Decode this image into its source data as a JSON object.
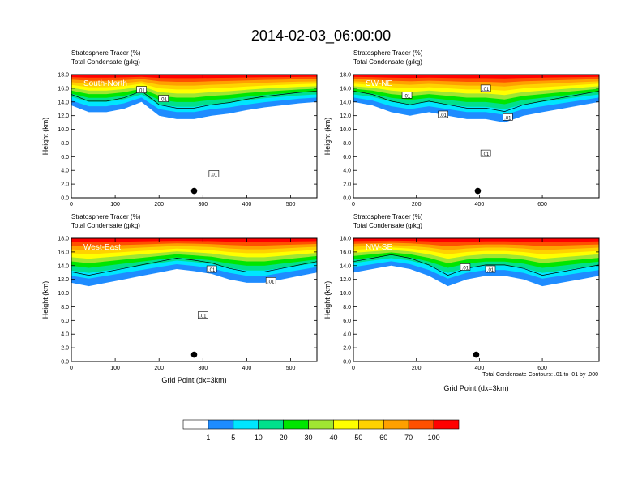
{
  "title": "2014-02-03_06:00:00",
  "panel_header_line1": "Stratosphere Tracer   (%)",
  "panel_header_line2": "Total Condensate   (g/kg)",
  "ylabel": "Height (km)",
  "xlabel": "Grid Point (dx=3km)",
  "contour_note": "Total Condensate Contours: .01 to .01 by .000",
  "contour_level_label": ".01",
  "colors": {
    "palette": [
      "#ffffff",
      "#1e8cff",
      "#00e6ff",
      "#00e08c",
      "#00e600",
      "#a0e632",
      "#ffff00",
      "#ffd200",
      "#ffa000",
      "#ff5000",
      "#ff0000"
    ]
  },
  "colorbar": {
    "levels": [
      "1",
      "5",
      "10",
      "20",
      "30",
      "40",
      "50",
      "60",
      "70",
      "100"
    ]
  },
  "chart_data": [
    {
      "type": "heatmap",
      "name": "South-North",
      "xlim": [
        0,
        560
      ],
      "xticks": [
        "0",
        "100",
        "200",
        "300",
        "400",
        "500"
      ],
      "ylim": [
        0,
        18
      ],
      "yticks": [
        "0.0",
        "2.0",
        "4.0",
        "6.0",
        "8.0",
        "10.0",
        "12.0",
        "14.0",
        "16.0",
        "18.0"
      ],
      "marker": {
        "x": 280,
        "y": 1.0
      },
      "band": {
        "x": [
          0,
          40,
          80,
          120,
          160,
          200,
          240,
          280,
          320,
          360,
          400,
          440,
          480,
          520,
          560
        ],
        "top": [
          18,
          18,
          18,
          18,
          18,
          18,
          18,
          18,
          18,
          18,
          18,
          18,
          18,
          18,
          18
        ],
        "bottom": [
          13.5,
          12.5,
          12.5,
          13.0,
          14.0,
          12.0,
          11.5,
          11.5,
          12.0,
          12.3,
          12.8,
          13.2,
          13.5,
          13.8,
          14.0
        ]
      },
      "contour_labels": [
        {
          "x": 210,
          "y": 14.5
        },
        {
          "x": 325,
          "y": 3.5
        },
        {
          "x": 160,
          "y": 15.8
        }
      ]
    },
    {
      "type": "heatmap",
      "name": "SW-NE",
      "xlim": [
        0,
        780
      ],
      "xticks": [
        "0",
        "200",
        "400",
        "600"
      ],
      "ylim": [
        0,
        18
      ],
      "yticks": [
        "0.0",
        "2.0",
        "4.0",
        "6.0",
        "8.0",
        "10.0",
        "12.0",
        "14.0",
        "16.0",
        "18.0"
      ],
      "marker": {
        "x": 395,
        "y": 1.0
      },
      "band": {
        "x": [
          0,
          60,
          120,
          180,
          240,
          300,
          360,
          420,
          480,
          540,
          600,
          660,
          720,
          780
        ],
        "top": [
          18,
          18,
          18,
          18,
          18,
          18,
          18,
          18,
          18,
          18,
          18,
          18,
          18,
          18
        ],
        "bottom": [
          14.0,
          13.5,
          12.5,
          12.0,
          12.5,
          12.0,
          11.5,
          11.5,
          11.0,
          12.0,
          12.5,
          13.0,
          13.5,
          14.0
        ]
      },
      "contour_labels": [
        {
          "x": 170,
          "y": 15.0
        },
        {
          "x": 285,
          "y": 12.2
        },
        {
          "x": 420,
          "y": 16.0
        },
        {
          "x": 490,
          "y": 11.8
        },
        {
          "x": 420,
          "y": 6.5
        }
      ]
    },
    {
      "type": "heatmap",
      "name": "West-East",
      "xlim": [
        0,
        560
      ],
      "xticks": [
        "0",
        "100",
        "200",
        "300",
        "400",
        "500"
      ],
      "ylim": [
        0,
        18
      ],
      "yticks": [
        "0.0",
        "2.0",
        "4.0",
        "6.0",
        "8.0",
        "10.0",
        "12.0",
        "14.0",
        "16.0",
        "18.0"
      ],
      "marker": {
        "x": 280,
        "y": 1.0
      },
      "band": {
        "x": [
          0,
          40,
          80,
          120,
          160,
          200,
          240,
          280,
          320,
          360,
          400,
          440,
          480,
          520,
          560
        ],
        "top": [
          18,
          18,
          18,
          18,
          18,
          18,
          18,
          18,
          18,
          18,
          18,
          18,
          18,
          18,
          18
        ],
        "bottom": [
          11.5,
          11.0,
          11.5,
          12.0,
          12.5,
          13.0,
          13.5,
          13.2,
          12.8,
          12.0,
          11.5,
          11.5,
          12.0,
          12.5,
          13.0
        ]
      },
      "contour_labels": [
        {
          "x": 320,
          "y": 13.5
        },
        {
          "x": 455,
          "y": 11.8
        },
        {
          "x": 300,
          "y": 6.8
        }
      ]
    },
    {
      "type": "heatmap",
      "name": "NW-SE",
      "xlim": [
        0,
        780
      ],
      "xticks": [
        "0",
        "200",
        "400",
        "600"
      ],
      "ylim": [
        0,
        18
      ],
      "yticks": [
        "0.0",
        "2.0",
        "4.0",
        "6.0",
        "8.0",
        "10.0",
        "12.0",
        "14.0",
        "16.0",
        "18.0"
      ],
      "marker": {
        "x": 390,
        "y": 1.0
      },
      "band": {
        "x": [
          0,
          60,
          120,
          180,
          240,
          300,
          360,
          420,
          480,
          540,
          600,
          660,
          720,
          780
        ],
        "top": [
          18,
          18,
          18,
          18,
          18,
          18,
          18,
          18,
          18,
          18,
          18,
          18,
          18,
          18
        ],
        "bottom": [
          13.0,
          13.5,
          14.0,
          13.5,
          12.5,
          11.0,
          12.0,
          12.5,
          12.5,
          12.0,
          11.0,
          11.5,
          12.0,
          12.5
        ]
      },
      "contour_labels": [
        {
          "x": 355,
          "y": 13.8
        },
        {
          "x": 435,
          "y": 13.5
        }
      ]
    }
  ]
}
